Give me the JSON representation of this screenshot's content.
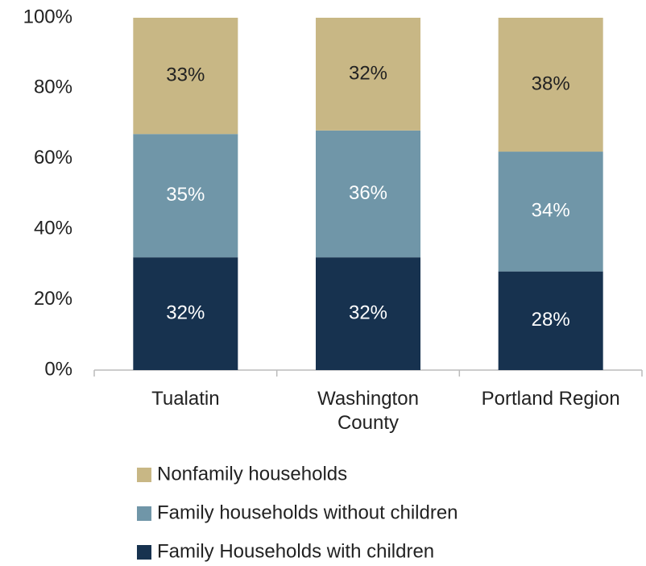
{
  "chart_data": {
    "type": "stacked_bar",
    "categories": [
      "Tualatin",
      "Washington County",
      "Portland Region"
    ],
    "series": [
      {
        "name": "Family Households with children",
        "color": "#17324f",
        "values": [
          32,
          32,
          28
        ],
        "value_labels": [
          "32%",
          "32%",
          "28%"
        ],
        "label_color": "#ffffff"
      },
      {
        "name": "Family households without children",
        "color": "#7096a8",
        "values": [
          35,
          36,
          34
        ],
        "value_labels": [
          "35%",
          "36%",
          "34%"
        ],
        "label_color": "#ffffff"
      },
      {
        "name": "Nonfamily households",
        "color": "#c8b785",
        "values": [
          33,
          32,
          38
        ],
        "value_labels": [
          "33%",
          "32%",
          "38%"
        ],
        "label_color": "#222222"
      }
    ],
    "ylim": [
      0,
      100
    ],
    "yticks": [
      {
        "value": 0,
        "label": "0%"
      },
      {
        "value": 20,
        "label": "20%"
      },
      {
        "value": 40,
        "label": "40%"
      },
      {
        "value": 60,
        "label": "60%"
      },
      {
        "value": 80,
        "label": "80%"
      },
      {
        "value": 100,
        "label": "100%"
      }
    ],
    "grid": false,
    "legend": "bottom"
  }
}
